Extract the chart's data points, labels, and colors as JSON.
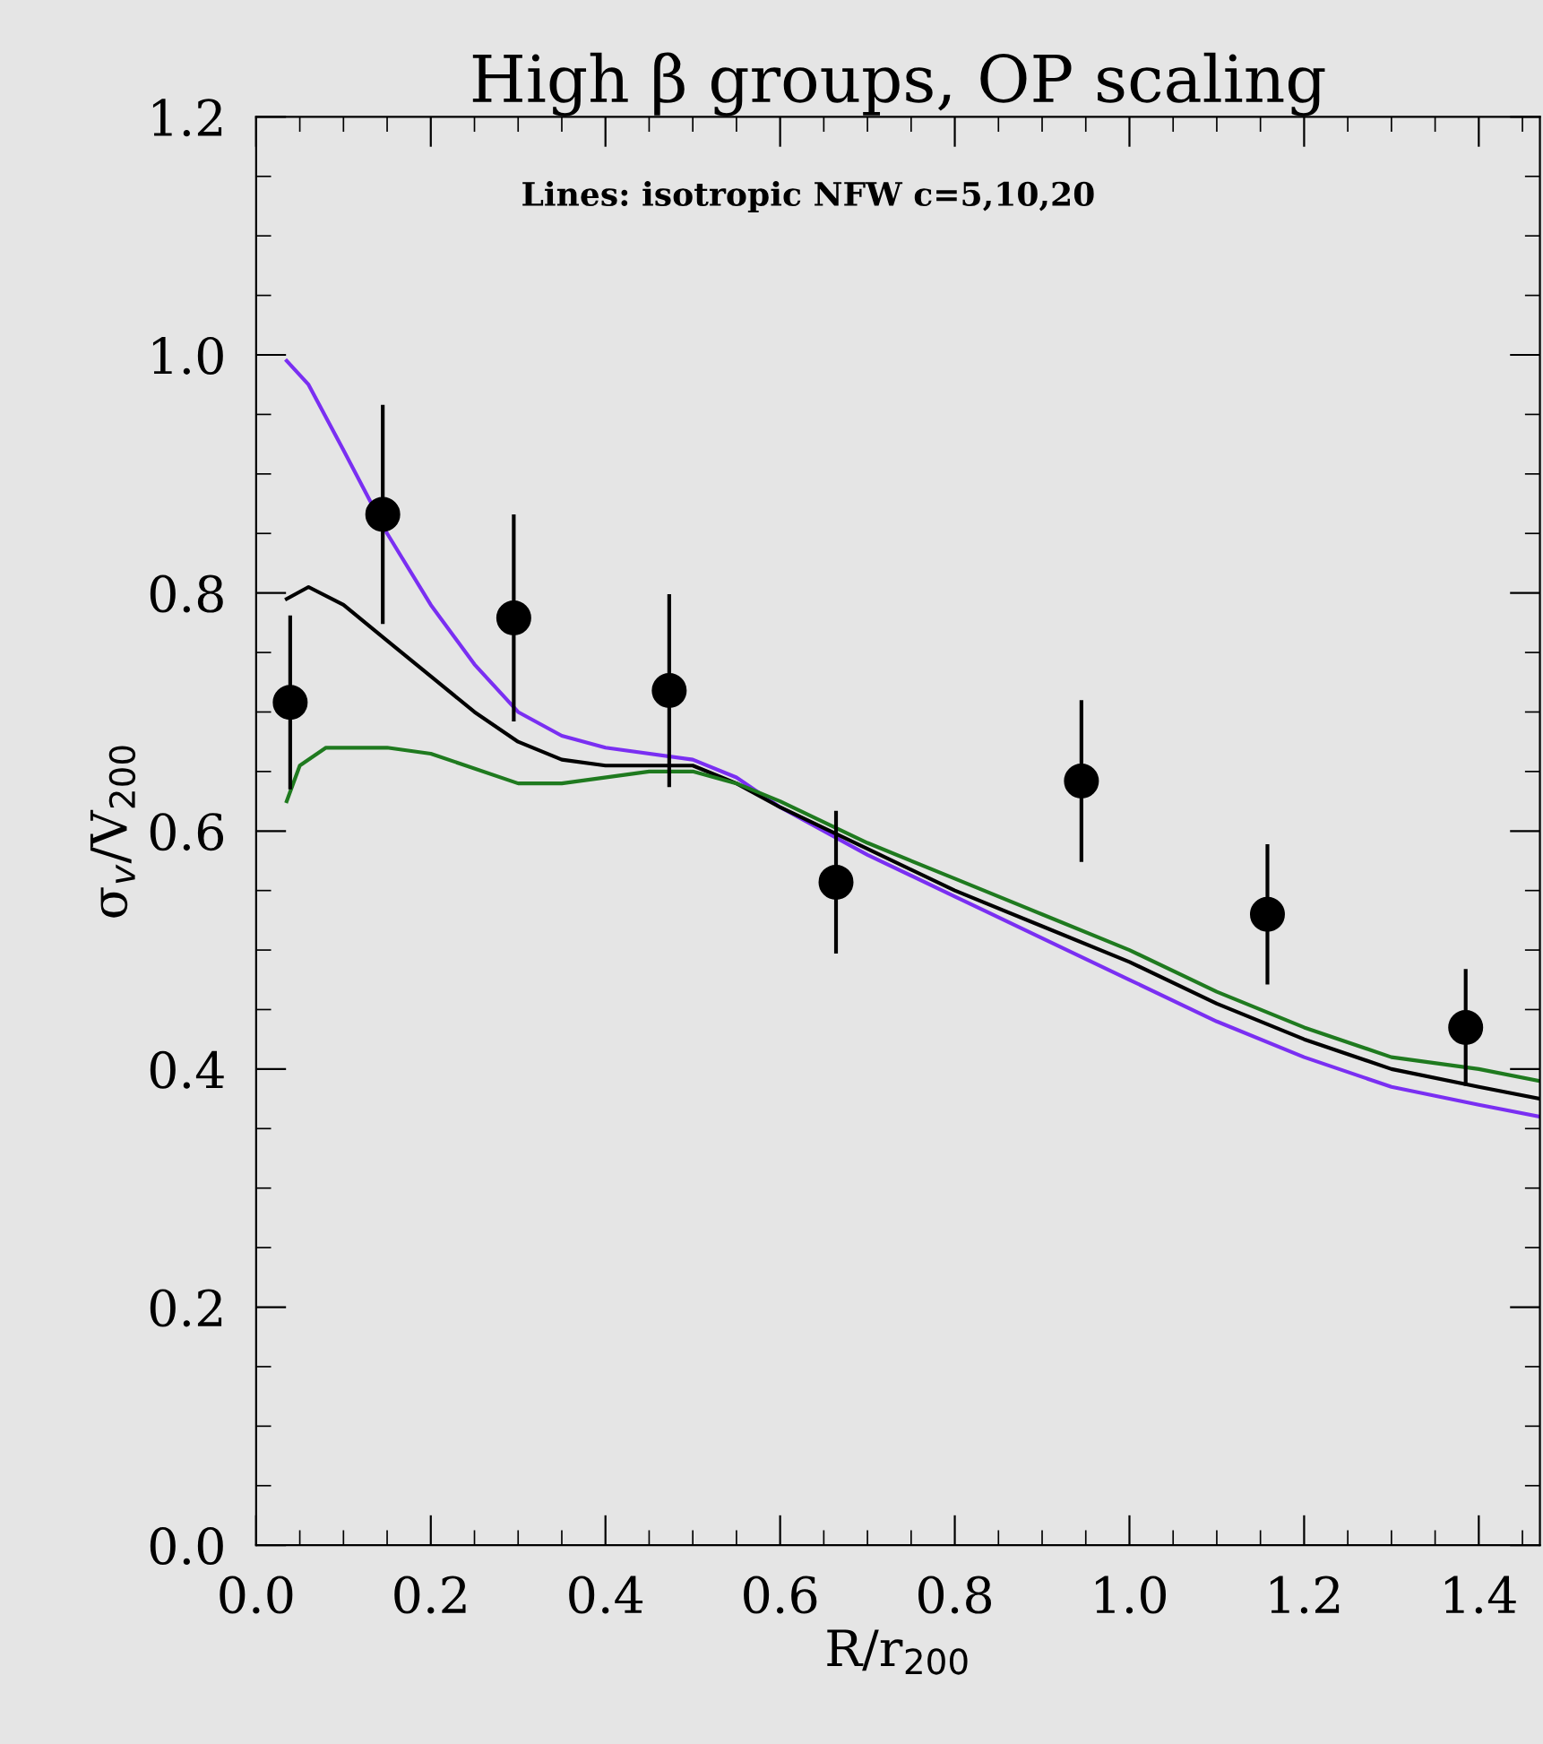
{
  "chart_data": {
    "type": "line",
    "title": "High β groups, OP scaling",
    "xlabel": "R/r$_{200}$",
    "ylabel": "σ$_{v}$/V$_{200}$",
    "annotations": [
      "Lines: isotropic NFW c=5,10,20"
    ],
    "xlim": [
      0,
      1.47
    ],
    "ylim": [
      0,
      1.2
    ],
    "xticks": [
      {
        "value": 0,
        "label": "0.0"
      },
      0.2,
      0.4,
      0.6,
      0.8,
      {
        "value": 1,
        "label": "1.0"
      },
      1.2,
      1.4
    ],
    "yticks": [
      {
        "value": 0,
        "label": "0.0"
      },
      0.2,
      0.4,
      0.6,
      0.8,
      {
        "value": 1,
        "label": "1.0"
      },
      1.2
    ],
    "grid": false,
    "legend": false,
    "series": [
      {
        "color": "#7a2ff2",
        "x": [
          0.035,
          0.06,
          0.1,
          0.15,
          0.2,
          0.25,
          0.3,
          0.35,
          0.4,
          0.5,
          0.55,
          0.6,
          0.7,
          0.8,
          0.9,
          1.0,
          1.1,
          1.2,
          1.3,
          1.4,
          1.47
        ],
        "values": [
          0.995,
          0.975,
          0.92,
          0.85,
          0.79,
          0.74,
          0.7,
          0.68,
          0.67,
          0.66,
          0.645,
          0.62,
          0.58,
          0.545,
          0.51,
          0.475,
          0.44,
          0.41,
          0.385,
          0.37,
          0.36
        ]
      },
      {
        "color": "#000000",
        "x": [
          0.035,
          0.06,
          0.1,
          0.15,
          0.2,
          0.25,
          0.3,
          0.35,
          0.4,
          0.5,
          0.55,
          0.6,
          0.7,
          0.8,
          0.9,
          1.0,
          1.1,
          1.2,
          1.3,
          1.4,
          1.47
        ],
        "values": [
          0.795,
          0.805,
          0.79,
          0.76,
          0.73,
          0.7,
          0.675,
          0.66,
          0.655,
          0.655,
          0.64,
          0.62,
          0.585,
          0.55,
          0.52,
          0.49,
          0.455,
          0.425,
          0.4,
          0.385,
          0.375
        ]
      },
      {
        "color": "#1f7a1f",
        "x": [
          0.035,
          0.05,
          0.08,
          0.15,
          0.2,
          0.3,
          0.35,
          0.45,
          0.5,
          0.55,
          0.6,
          0.7,
          0.8,
          0.9,
          1.0,
          1.1,
          1.2,
          1.3,
          1.4,
          1.47
        ],
        "values": [
          0.625,
          0.655,
          0.67,
          0.67,
          0.665,
          0.64,
          0.64,
          0.65,
          0.65,
          0.64,
          0.625,
          0.59,
          0.56,
          0.53,
          0.5,
          0.465,
          0.435,
          0.41,
          0.4,
          0.39
        ]
      },
      {
        "type": "scatter",
        "color": "#000000",
        "marker": "circle",
        "x": [
          0.039,
          0.145,
          0.295,
          0.473,
          0.664,
          0.945,
          1.158,
          1.385
        ],
        "values": [
          0.708,
          0.866,
          0.779,
          0.718,
          0.557,
          0.642,
          0.53,
          0.435
        ],
        "errors": [
          0.073,
          0.092,
          0.087,
          0.081,
          0.06,
          0.068,
          0.059,
          0.049
        ]
      }
    ]
  }
}
